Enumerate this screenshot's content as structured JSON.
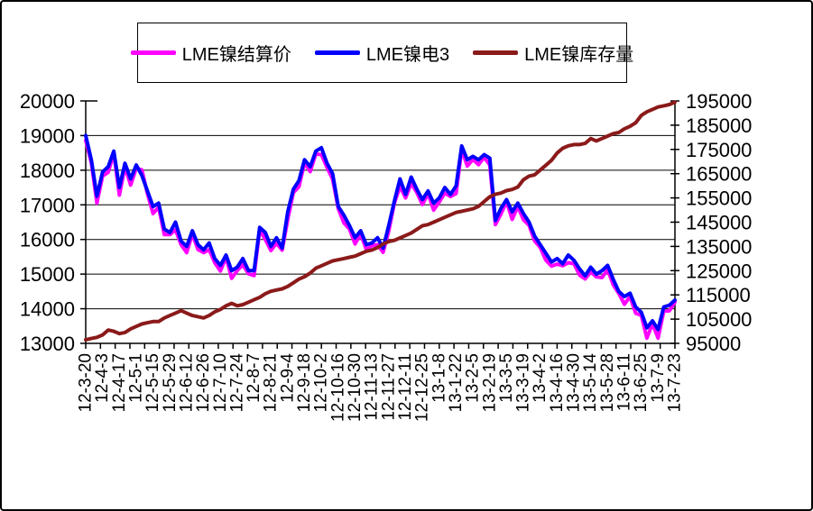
{
  "legend": {
    "items": [
      {
        "label": "LME镍结算价",
        "color": "#FF00FF"
      },
      {
        "label": "LME镍电3",
        "color": "#0000FF"
      },
      {
        "label": "LME镍库存量",
        "color": "#8B1A1A"
      }
    ]
  },
  "chart_data": {
    "type": "line",
    "title": "",
    "grid": "horizontal-on",
    "legend_position": "top",
    "x_labels": [
      "12-3-20",
      "12-4-3",
      "12-4-17",
      "12-5-1",
      "12-5-15",
      "12-5-29",
      "12-6-12",
      "12-6-26",
      "12-7-10",
      "12-7-24",
      "12-8-7",
      "12-8-21",
      "12-9-4",
      "12-9-18",
      "12-10-2",
      "12-10-16",
      "12-10-30",
      "12-11-13",
      "12-11-27",
      "12-12-11",
      "12-12-25",
      "13-1-8",
      "13-1-22",
      "13-2-5",
      "13-2-19",
      "13-3-5",
      "13-3-19",
      "13-4-2",
      "13-4-16",
      "13-4-30",
      "13-5-14",
      "13-5-28",
      "13-6-11",
      "13-6-25",
      "13-7-9",
      "13-7-23"
    ],
    "points_per_label_interval": 3,
    "left_axis": {
      "min": 13000,
      "max": 20000,
      "step": 1000,
      "tick_labels": [
        "20000",
        "19000",
        "18000",
        "17000",
        "16000",
        "15000",
        "14000",
        "13000"
      ]
    },
    "right_axis": {
      "min": 95000,
      "max": 195000,
      "step": 10000,
      "tick_labels": [
        "195000",
        "185000",
        "175000",
        "165000",
        "155000",
        "145000",
        "135000",
        "125000",
        "115000",
        "105000",
        "95000"
      ]
    },
    "series": [
      {
        "name": "LME镍结算价",
        "axis": "left",
        "color": "#FF00FF",
        "values": [
          18860,
          18220,
          17050,
          17830,
          17940,
          18490,
          17280,
          18100,
          17570,
          18060,
          18010,
          17320,
          16750,
          16930,
          16140,
          16140,
          16280,
          15850,
          15620,
          16160,
          15710,
          15620,
          15700,
          15330,
          15090,
          15490,
          14880,
          15100,
          15270,
          15010,
          14960,
          16270,
          16000,
          15680,
          15890,
          15690,
          16580,
          17350,
          17520,
          18210,
          17960,
          18470,
          18450,
          18080,
          17740,
          16890,
          16480,
          16300,
          15870,
          16160,
          15710,
          15820,
          15850,
          15630,
          16240,
          17040,
          17530,
          17200,
          17620,
          17360,
          17010,
          17320,
          16850,
          17080,
          17340,
          17240,
          17330,
          18600,
          18120,
          18310,
          18160,
          18370,
          18150,
          16430,
          16740,
          17090,
          16580,
          16950,
          16570,
          16410,
          15960,
          15770,
          15400,
          15230,
          15290,
          15240,
          15330,
          15300,
          14970,
          14860,
          15060,
          14920,
          14900,
          15130,
          14690,
          14440,
          14130,
          14350,
          13870,
          13810,
          13150,
          13570,
          13150,
          13930,
          13940,
          14190
        ]
      },
      {
        "name": "LME镍电3",
        "axis": "left",
        "color": "#0000FF",
        "values": [
          19000,
          18300,
          17250,
          17950,
          18100,
          18550,
          17500,
          18200,
          17750,
          18150,
          17850,
          17400,
          16950,
          17050,
          16300,
          16200,
          16500,
          15950,
          15800,
          16250,
          15850,
          15700,
          15900,
          15450,
          15250,
          15550,
          15100,
          15200,
          15450,
          15100,
          15100,
          16350,
          16200,
          15800,
          16050,
          15750,
          16800,
          17450,
          17700,
          18300,
          18100,
          18550,
          18650,
          18200,
          17900,
          16950,
          16700,
          16400,
          16050,
          16250,
          15850,
          15900,
          16050,
          15750,
          16400,
          17100,
          17750,
          17300,
          17800,
          17450,
          17150,
          17400,
          17050,
          17200,
          17500,
          17300,
          17550,
          18700,
          18300,
          18400,
          18300,
          18450,
          18350,
          16550,
          16900,
          17150,
          16800,
          17050,
          16750,
          16500,
          16100,
          15850,
          15600,
          15350,
          15450,
          15300,
          15550,
          15400,
          15150,
          14950,
          15200,
          15000,
          15100,
          15250,
          14850,
          14500,
          14350,
          14450,
          14050,
          13900,
          13450,
          13650,
          13400,
          14050,
          14100,
          14250
        ]
      },
      {
        "name": "LME镍库存量",
        "axis": "right",
        "color": "#8B1A1A",
        "values": [
          96500,
          97000,
          97500,
          98500,
          100500,
          100000,
          99000,
          99500,
          101000,
          102000,
          103000,
          103500,
          104000,
          104000,
          105500,
          106500,
          107500,
          108500,
          107500,
          106500,
          106000,
          105500,
          106500,
          108000,
          109000,
          110500,
          111500,
          110500,
          111000,
          112000,
          113000,
          114000,
          115500,
          116500,
          117000,
          117500,
          118500,
          120000,
          121500,
          122500,
          124000,
          126000,
          127000,
          128000,
          129000,
          129500,
          130000,
          130500,
          131000,
          132000,
          133000,
          133500,
          134500,
          136000,
          137000,
          137500,
          138500,
          139500,
          140500,
          142000,
          143500,
          144000,
          145000,
          146000,
          147000,
          148000,
          149000,
          149500,
          150000,
          150500,
          151500,
          153500,
          155500,
          156500,
          157000,
          158000,
          158500,
          159500,
          162500,
          164000,
          164500,
          166500,
          168500,
          170500,
          173500,
          175500,
          176500,
          177000,
          177000,
          177500,
          179500,
          178500,
          179500,
          180500,
          181500,
          182000,
          183500,
          184500,
          186000,
          189000,
          190500,
          191500,
          192500,
          193000,
          193500,
          194500
        ]
      }
    ]
  },
  "colors": {
    "background": "#FFFFFF",
    "axis": "#000000",
    "gridline": "#000000"
  }
}
